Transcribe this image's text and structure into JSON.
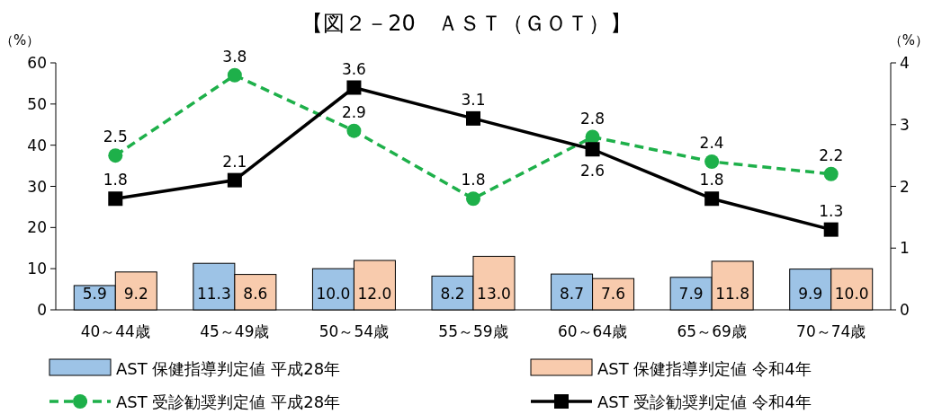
{
  "chart_data": {
    "type": "bar",
    "title": "【図２－20　ＡＳＴ（ＧＯＴ）】",
    "ylabel": "（%）",
    "y2label": "（%）",
    "categories": [
      "40～44歳",
      "45～49歳",
      "50～54歳",
      "55～59歳",
      "60～64歳",
      "65～69歳",
      "70～74歳"
    ],
    "series": [
      {
        "name": "AST 保健指導判定値 平成28年",
        "color": "#9dc3e6",
        "values": [
          5.9,
          11.3,
          10.0,
          8.2,
          8.7,
          7.9,
          9.9
        ],
        "value_labels": [
          "5.9",
          "11.3",
          "10.0",
          "8.2",
          "8.7",
          "7.9",
          "9.9"
        ]
      },
      {
        "name": "AST 保健指導判定値 令和4年",
        "color": "#f8cbad",
        "values": [
          9.2,
          8.6,
          12.0,
          13.0,
          7.6,
          11.8,
          10.0
        ],
        "value_labels": [
          "9.2",
          "8.6",
          "12.0",
          "13.0",
          "7.6",
          "11.8",
          "10.0"
        ]
      },
      {
        "name": "AST 受診勧奨判定値 平成28年",
        "type": "line",
        "axis": "y2",
        "color": "#1eb04a",
        "marker": "circle",
        "line_style": "dashed",
        "values": [
          2.5,
          3.8,
          2.9,
          1.8,
          2.8,
          2.4,
          2.2
        ],
        "value_labels": [
          "2.5",
          "3.8",
          "2.9",
          "1.8",
          "2.8",
          "2.4",
          "2.2"
        ]
      },
      {
        "name": "AST 受診勧奨判定値 令和4年",
        "type": "line",
        "axis": "y2",
        "color": "#000000",
        "marker": "square",
        "line_style": "solid",
        "values": [
          1.8,
          2.1,
          3.6,
          3.1,
          2.6,
          1.8,
          1.3
        ],
        "value_labels": [
          "1.8",
          "2.1",
          "3.6",
          "3.1",
          "2.6",
          "1.8",
          "1.3"
        ]
      }
    ],
    "ylim": [
      0,
      60
    ],
    "yticks": [
      0,
      10,
      20,
      30,
      40,
      50,
      60
    ],
    "y2lim": [
      0,
      4
    ],
    "y2ticks": [
      0,
      1,
      2,
      3,
      4
    ],
    "grid": false,
    "legend": "bottom"
  }
}
